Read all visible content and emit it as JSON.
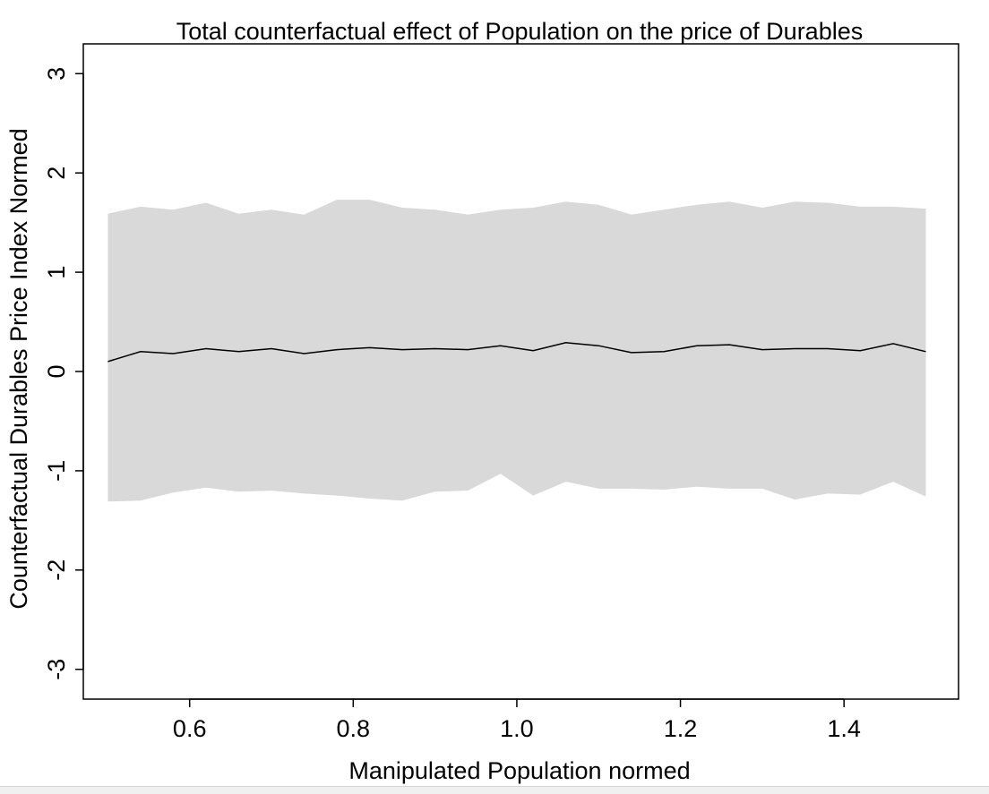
{
  "chart_data": {
    "type": "line",
    "title": "Total counterfactual effect of Population on the price of Durables",
    "xlabel": "Manipulated Population normed",
    "ylabel": "Counterfactual Durables Price Index Normed",
    "xlim": [
      0.47,
      1.54
    ],
    "ylim": [
      -3.3,
      3.3
    ],
    "xticks": [
      {
        "value": 0.6,
        "label": "0.6"
      },
      {
        "value": 0.8,
        "label": "0.8"
      },
      {
        "value": 1.0,
        "label": "1.0"
      },
      {
        "value": 1.2,
        "label": "1.2"
      },
      {
        "value": 1.4,
        "label": "1.4"
      }
    ],
    "yticks": [
      {
        "value": -3,
        "label": "-3"
      },
      {
        "value": -2,
        "label": "-2"
      },
      {
        "value": -1,
        "label": "-1"
      },
      {
        "value": 0,
        "label": "0"
      },
      {
        "value": 1,
        "label": "1"
      },
      {
        "value": 2,
        "label": "2"
      },
      {
        "value": 3,
        "label": "3"
      }
    ],
    "grid": false,
    "legend": "none",
    "x": [
      0.5,
      0.54,
      0.58,
      0.62,
      0.66,
      0.7,
      0.74,
      0.78,
      0.82,
      0.86,
      0.9,
      0.94,
      0.98,
      1.02,
      1.06,
      1.1,
      1.14,
      1.18,
      1.22,
      1.26,
      1.3,
      1.34,
      1.38,
      1.42,
      1.46,
      1.5
    ],
    "series": [
      {
        "values": [
          0.1,
          0.2,
          0.18,
          0.23,
          0.2,
          0.23,
          0.18,
          0.22,
          0.24,
          0.22,
          0.23,
          0.22,
          0.26,
          0.21,
          0.29,
          0.26,
          0.19,
          0.2,
          0.26,
          0.27,
          0.22,
          0.23,
          0.23,
          0.21,
          0.28,
          0.2
        ],
        "lower": [
          -1.31,
          -1.3,
          -1.22,
          -1.17,
          -1.21,
          -1.2,
          -1.23,
          -1.25,
          -1.28,
          -1.3,
          -1.21,
          -1.2,
          -1.03,
          -1.25,
          -1.11,
          -1.18,
          -1.18,
          -1.19,
          -1.16,
          -1.18,
          -1.18,
          -1.29,
          -1.23,
          -1.24,
          -1.11,
          -1.26
        ],
        "upper": [
          1.59,
          1.66,
          1.63,
          1.7,
          1.59,
          1.63,
          1.58,
          1.73,
          1.73,
          1.65,
          1.63,
          1.58,
          1.63,
          1.65,
          1.71,
          1.68,
          1.58,
          1.63,
          1.68,
          1.71,
          1.65,
          1.71,
          1.7,
          1.66,
          1.66,
          1.64
        ]
      }
    ],
    "colors": {
      "band": "#d9d9d9",
      "line": "#000000",
      "axis": "#000000"
    }
  }
}
